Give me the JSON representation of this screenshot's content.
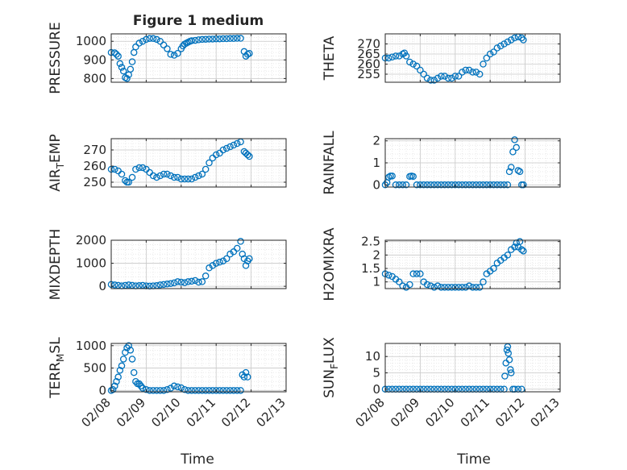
{
  "figure": {
    "title": "Figure 1 medium",
    "x_tick_labels": [
      "02/08",
      "02/09",
      "02/10",
      "02/11",
      "02/12",
      "02/13"
    ],
    "x_label": "Time",
    "marker_color": "#0072BD"
  },
  "chart_data": [
    {
      "type": "scatter",
      "ylabel": "PRESSURE",
      "xlim": [
        "02/08",
        "02/13"
      ],
      "ylim": [
        780,
        1040
      ],
      "yticks": [
        800,
        900,
        1000
      ],
      "grid": true,
      "x_days": [
        0.0,
        0.1,
        0.15,
        0.2,
        0.25,
        0.3,
        0.35,
        0.4,
        0.45,
        0.5,
        0.55,
        0.6,
        0.65,
        0.7,
        0.8,
        0.9,
        1.0,
        1.1,
        1.2,
        1.3,
        1.4,
        1.5,
        1.6,
        1.7,
        1.8,
        1.9,
        2.0,
        2.05,
        2.1,
        2.15,
        2.2,
        2.25,
        2.3,
        2.4,
        2.5,
        2.6,
        2.7,
        2.8,
        2.9,
        3.0,
        3.1,
        3.2,
        3.3,
        3.4,
        3.5,
        3.6,
        3.7,
        3.8,
        3.85,
        3.9,
        3.95
      ],
      "values": [
        940,
        938,
        930,
        920,
        880,
        860,
        840,
        805,
        800,
        820,
        850,
        890,
        940,
        970,
        990,
        1000,
        1010,
        1015,
        1015,
        1010,
        1000,
        980,
        960,
        930,
        925,
        935,
        960,
        975,
        985,
        990,
        995,
        1000,
        1003,
        1005,
        1008,
        1010,
        1011,
        1012,
        1012,
        1013,
        1013,
        1014,
        1014,
        1015,
        1015,
        1016,
        1016,
        945,
        920,
        930,
        935
      ]
    },
    {
      "type": "scatter",
      "ylabel": "THETA",
      "xlim": [
        "02/08",
        "02/13"
      ],
      "ylim": [
        251,
        275
      ],
      "yticks": [
        255,
        260,
        265,
        270
      ],
      "grid": true,
      "x_days": [
        0.0,
        0.1,
        0.2,
        0.3,
        0.4,
        0.5,
        0.55,
        0.6,
        0.7,
        0.8,
        0.9,
        1.0,
        1.1,
        1.2,
        1.3,
        1.4,
        1.5,
        1.6,
        1.7,
        1.8,
        1.9,
        2.0,
        2.1,
        2.2,
        2.3,
        2.4,
        2.5,
        2.6,
        2.7,
        2.8,
        2.9,
        3.0,
        3.1,
        3.2,
        3.3,
        3.4,
        3.5,
        3.6,
        3.7,
        3.8,
        3.9,
        3.95
      ],
      "values": [
        263,
        263,
        263.5,
        264,
        264,
        265,
        265.5,
        264,
        261,
        260,
        259,
        257,
        255,
        253,
        252,
        252,
        253,
        254,
        254,
        253,
        253,
        254,
        254,
        256,
        257,
        257,
        256,
        256,
        255,
        260,
        263,
        265,
        266,
        268,
        269,
        270,
        271,
        272,
        273,
        273.5,
        273,
        272
      ]
    },
    {
      "type": "scatter",
      "ylabel": "AIR_TEMP",
      "xlim": [
        "02/08",
        "02/13"
      ],
      "ylim": [
        247,
        277
      ],
      "yticks": [
        250,
        260,
        270
      ],
      "grid": true,
      "x_days": [
        0.0,
        0.1,
        0.2,
        0.3,
        0.4,
        0.45,
        0.5,
        0.6,
        0.7,
        0.8,
        0.9,
        1.0,
        1.1,
        1.2,
        1.3,
        1.4,
        1.5,
        1.6,
        1.7,
        1.8,
        1.9,
        2.0,
        2.1,
        2.2,
        2.3,
        2.4,
        2.5,
        2.6,
        2.7,
        2.8,
        2.9,
        3.0,
        3.1,
        3.2,
        3.3,
        3.4,
        3.5,
        3.6,
        3.7,
        3.8,
        3.85,
        3.9,
        3.95
      ],
      "values": [
        258,
        258,
        257,
        255,
        251,
        250,
        250,
        253,
        258,
        259,
        259,
        258,
        256,
        254,
        253,
        254,
        255,
        255,
        254,
        253,
        253,
        252,
        252,
        252,
        252,
        253,
        254,
        255,
        258,
        262,
        265,
        267,
        268,
        270,
        271,
        272,
        273,
        274,
        275,
        269,
        268,
        267,
        266
      ]
    },
    {
      "type": "scatter",
      "ylabel": "RAINFALL",
      "xlim": [
        "02/08",
        "02/13"
      ],
      "ylim": [
        -0.1,
        2.1
      ],
      "yticks": [
        0,
        1,
        2
      ],
      "grid": true,
      "x_days": [
        0.0,
        0.05,
        0.1,
        0.15,
        0.2,
        0.3,
        0.4,
        0.5,
        0.6,
        0.7,
        0.75,
        0.8,
        0.9,
        1.0,
        1.1,
        1.2,
        1.3,
        1.4,
        1.5,
        1.6,
        1.7,
        1.8,
        1.9,
        2.0,
        2.1,
        2.2,
        2.3,
        2.4,
        2.5,
        2.6,
        2.7,
        2.8,
        2.9,
        3.0,
        3.1,
        3.2,
        3.3,
        3.4,
        3.5,
        3.55,
        3.6,
        3.65,
        3.7,
        3.75,
        3.8,
        3.85,
        3.9,
        3.95
      ],
      "values": [
        0,
        0.1,
        0.35,
        0.4,
        0.4,
        0,
        0,
        0,
        0,
        0.38,
        0.4,
        0.38,
        0,
        0,
        0,
        0,
        0,
        0,
        0,
        0,
        0,
        0,
        0,
        0,
        0,
        0,
        0,
        0,
        0,
        0,
        0,
        0,
        0,
        0,
        0,
        0,
        0,
        0,
        0,
        0.6,
        0.8,
        1.5,
        2.05,
        1.7,
        0.65,
        0.6,
        0,
        0
      ]
    },
    {
      "type": "scatter",
      "ylabel": "MIXDEPTH",
      "xlim": [
        "02/08",
        "02/13"
      ],
      "ylim": [
        -100,
        2000
      ],
      "yticks": [
        0,
        1000,
        2000
      ],
      "grid": true,
      "x_days": [
        0.0,
        0.1,
        0.2,
        0.3,
        0.4,
        0.5,
        0.6,
        0.7,
        0.8,
        0.9,
        1.0,
        1.1,
        1.2,
        1.3,
        1.4,
        1.5,
        1.6,
        1.7,
        1.8,
        1.9,
        2.0,
        2.1,
        2.2,
        2.3,
        2.4,
        2.5,
        2.6,
        2.7,
        2.8,
        2.9,
        3.0,
        3.1,
        3.2,
        3.3,
        3.4,
        3.5,
        3.6,
        3.7,
        3.75,
        3.8,
        3.85,
        3.9,
        3.95
      ],
      "values": [
        80,
        60,
        40,
        20,
        40,
        60,
        40,
        20,
        30,
        40,
        20,
        10,
        20,
        30,
        60,
        80,
        100,
        120,
        150,
        200,
        180,
        160,
        200,
        220,
        250,
        180,
        200,
        450,
        800,
        900,
        1000,
        1050,
        1100,
        1200,
        1400,
        1500,
        1650,
        1950,
        1400,
        1200,
        900,
        1100,
        1200
      ]
    },
    {
      "type": "scatter",
      "ylabel": "H2OMIXRA",
      "xlim": [
        "02/08",
        "02/13"
      ],
      "ylim": [
        0.75,
        2.55
      ],
      "yticks": [
        1,
        1.5,
        2,
        2.5
      ],
      "grid": true,
      "x_days": [
        0.0,
        0.1,
        0.2,
        0.3,
        0.4,
        0.5,
        0.6,
        0.7,
        0.8,
        0.9,
        1.0,
        1.1,
        1.2,
        1.3,
        1.4,
        1.5,
        1.6,
        1.7,
        1.8,
        1.9,
        2.0,
        2.1,
        2.2,
        2.3,
        2.4,
        2.5,
        2.6,
        2.7,
        2.8,
        2.9,
        3.0,
        3.1,
        3.2,
        3.3,
        3.4,
        3.5,
        3.6,
        3.7,
        3.75,
        3.8,
        3.85,
        3.9,
        3.95
      ],
      "values": [
        1.3,
        1.25,
        1.2,
        1.1,
        1.0,
        0.85,
        0.8,
        0.9,
        1.3,
        1.3,
        1.3,
        1.0,
        0.9,
        0.85,
        0.8,
        0.85,
        0.8,
        0.8,
        0.8,
        0.8,
        0.8,
        0.8,
        0.8,
        0.8,
        0.85,
        0.8,
        0.8,
        0.8,
        1.0,
        1.3,
        1.4,
        1.5,
        1.7,
        1.8,
        1.9,
        2.0,
        2.2,
        2.3,
        2.45,
        2.3,
        2.5,
        2.2,
        2.15
      ]
    },
    {
      "type": "scatter",
      "ylabel": "TERR_MSL",
      "xlim": [
        "02/08",
        "02/13"
      ],
      "ylim": [
        -30,
        1050
      ],
      "yticks": [
        0,
        500,
        1000
      ],
      "grid": true,
      "x_days": [
        0.0,
        0.05,
        0.1,
        0.15,
        0.2,
        0.25,
        0.3,
        0.35,
        0.4,
        0.45,
        0.5,
        0.55,
        0.6,
        0.65,
        0.7,
        0.75,
        0.8,
        0.85,
        0.9,
        1.0,
        1.1,
        1.2,
        1.3,
        1.4,
        1.5,
        1.6,
        1.7,
        1.8,
        1.9,
        2.0,
        2.1,
        2.2,
        2.3,
        2.4,
        2.5,
        2.6,
        2.7,
        2.8,
        2.9,
        3.0,
        3.1,
        3.2,
        3.3,
        3.4,
        3.5,
        3.6,
        3.7,
        3.75,
        3.8,
        3.85,
        3.9
      ],
      "values": [
        0,
        20,
        100,
        200,
        300,
        450,
        550,
        700,
        850,
        950,
        1000,
        900,
        700,
        400,
        200,
        150,
        150,
        100,
        50,
        20,
        0,
        0,
        0,
        0,
        0,
        20,
        50,
        100,
        80,
        60,
        20,
        0,
        0,
        0,
        0,
        0,
        0,
        0,
        0,
        0,
        0,
        0,
        0,
        0,
        0,
        0,
        0,
        350,
        300,
        400,
        300
      ]
    },
    {
      "type": "scatter",
      "ylabel": "SUN_FLUX",
      "xlim": [
        "02/08",
        "02/13"
      ],
      "ylim": [
        -0.8,
        14
      ],
      "yticks": [
        0,
        5,
        10
      ],
      "grid": true,
      "x_days": [
        0.0,
        0.1,
        0.2,
        0.3,
        0.4,
        0.5,
        0.6,
        0.7,
        0.8,
        0.9,
        1.0,
        1.1,
        1.2,
        1.3,
        1.4,
        1.5,
        1.6,
        1.7,
        1.8,
        1.9,
        2.0,
        2.1,
        2.2,
        2.3,
        2.4,
        2.5,
        2.6,
        2.7,
        2.8,
        2.9,
        3.0,
        3.1,
        3.2,
        3.3,
        3.4,
        3.42,
        3.45,
        3.48,
        3.5,
        3.52,
        3.55,
        3.58,
        3.6,
        3.65,
        3.7,
        3.8,
        3.9
      ],
      "values": [
        0,
        0,
        0,
        0,
        0,
        0,
        0,
        0,
        0,
        0,
        0,
        0,
        0,
        0,
        0,
        0,
        0,
        0,
        0,
        0,
        0,
        0,
        0,
        0,
        0,
        0,
        0,
        0,
        0,
        0,
        0,
        0,
        0,
        0,
        0,
        4,
        8,
        12,
        13,
        11,
        9,
        6,
        5,
        0,
        0,
        0,
        0
      ]
    }
  ]
}
